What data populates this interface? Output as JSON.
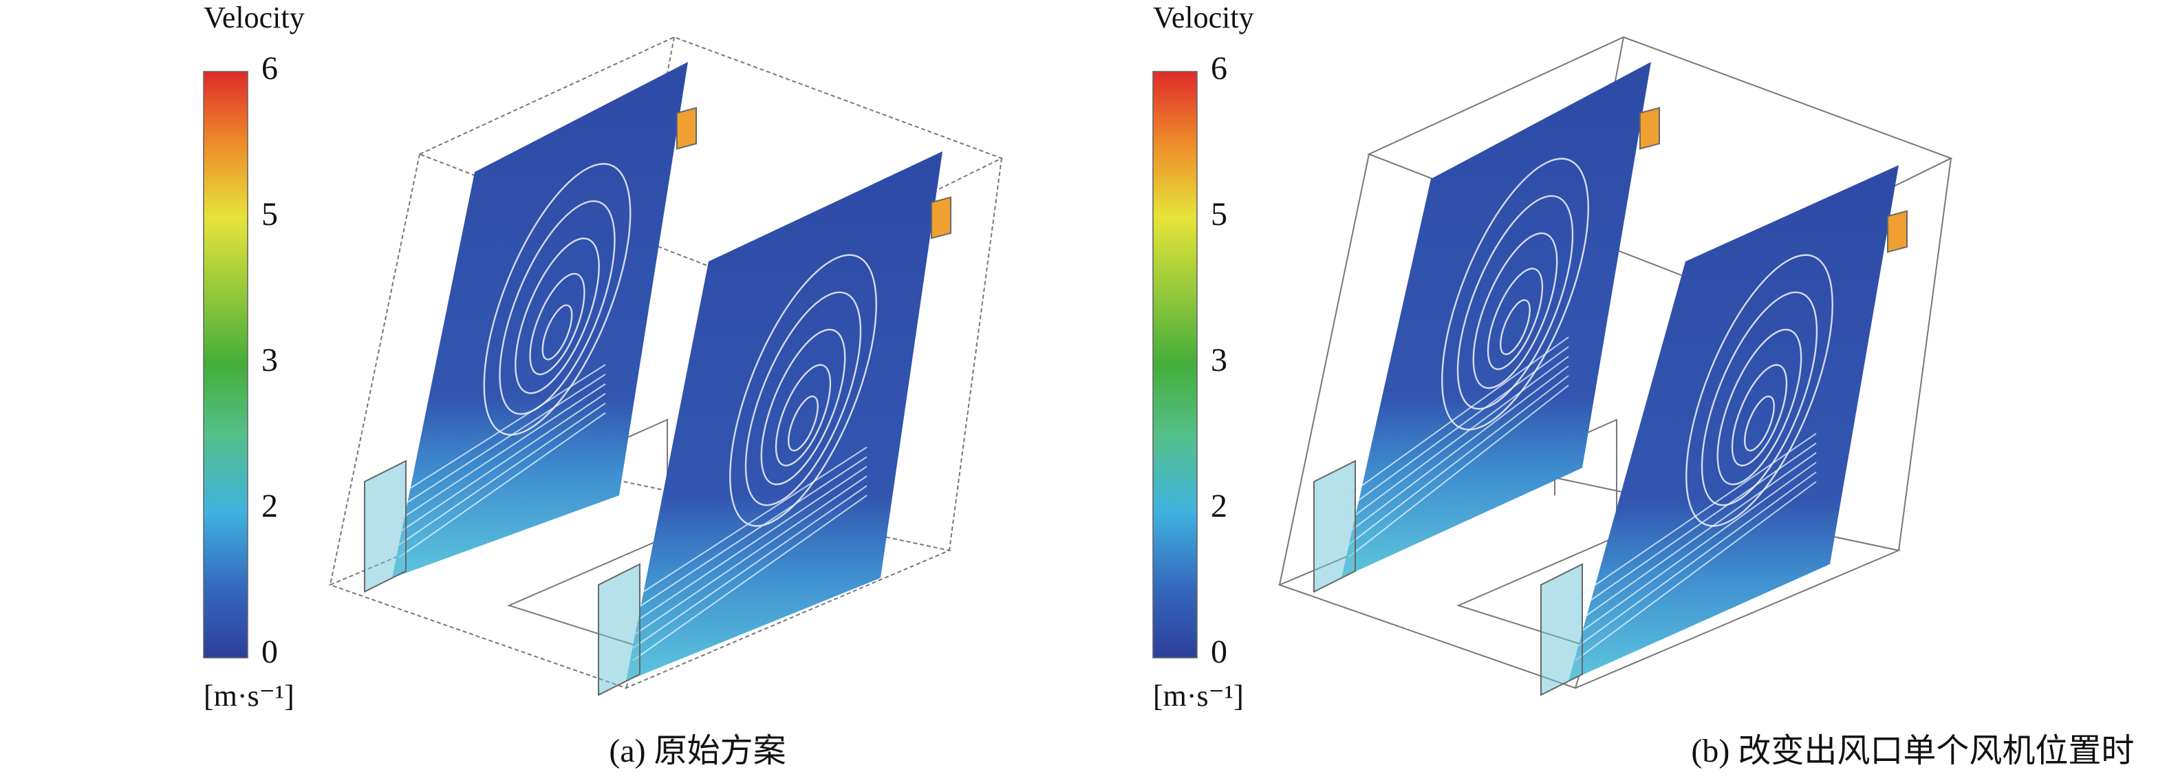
{
  "panels": [
    {
      "colorbar": {
        "title": "Velocity",
        "ticks": [
          "6",
          "5",
          "3",
          "2",
          "0"
        ],
        "unit": "[m·s⁻¹]"
      },
      "caption": "(a) 原始方案"
    },
    {
      "colorbar": {
        "title": "Velocity",
        "ticks": [
          "6",
          "5",
          "3",
          "2",
          "0"
        ],
        "unit": "[m·s⁻¹]"
      },
      "caption": "(b) 改变出风口单个风机位置时"
    }
  ]
}
